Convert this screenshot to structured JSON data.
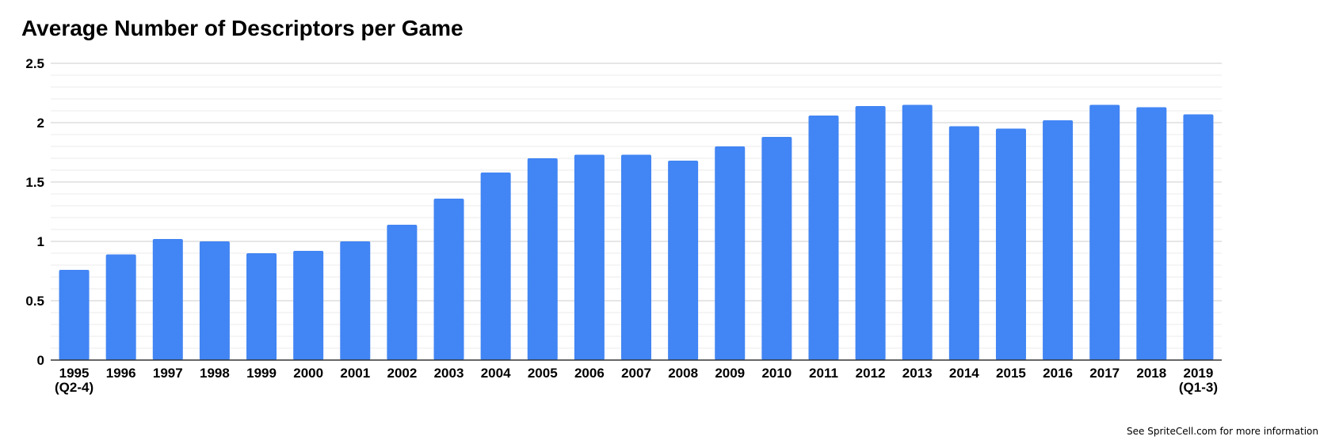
{
  "chart_data": {
    "type": "bar",
    "title": "Average Number of Descriptors per Game",
    "xlabel": "",
    "ylabel": "",
    "ylim": [
      0,
      2.5
    ],
    "yticks": [
      "0",
      "0.5",
      "1",
      "1.5",
      "2",
      "2.5"
    ],
    "grid": true,
    "legend": "none",
    "categories": [
      [
        "1995",
        "(Q2-4)"
      ],
      [
        "1996"
      ],
      [
        "1997"
      ],
      [
        "1998"
      ],
      [
        "1999"
      ],
      [
        "2000"
      ],
      [
        "2001"
      ],
      [
        "2002"
      ],
      [
        "2003"
      ],
      [
        "2004"
      ],
      [
        "2005"
      ],
      [
        "2006"
      ],
      [
        "2007"
      ],
      [
        "2008"
      ],
      [
        "2009"
      ],
      [
        "2010"
      ],
      [
        "2011"
      ],
      [
        "2012"
      ],
      [
        "2013"
      ],
      [
        "2014"
      ],
      [
        "2015"
      ],
      [
        "2016"
      ],
      [
        "2017"
      ],
      [
        "2018"
      ],
      [
        "2019",
        "(Q1-3)"
      ]
    ],
    "values": [
      0.76,
      0.89,
      1.02,
      1.0,
      0.9,
      0.92,
      1.0,
      1.14,
      1.36,
      1.58,
      1.7,
      1.73,
      1.73,
      1.68,
      1.8,
      1.88,
      2.06,
      2.14,
      2.15,
      1.97,
      1.95,
      2.02,
      2.15,
      2.13,
      2.07
    ],
    "colors": {
      "bar": "#4285F4",
      "major_grid": "#cccccc",
      "minor_grid": "#ebebeb",
      "axis": "#333333"
    }
  },
  "footer": {
    "note": "See SpriteCell.com for more information"
  }
}
